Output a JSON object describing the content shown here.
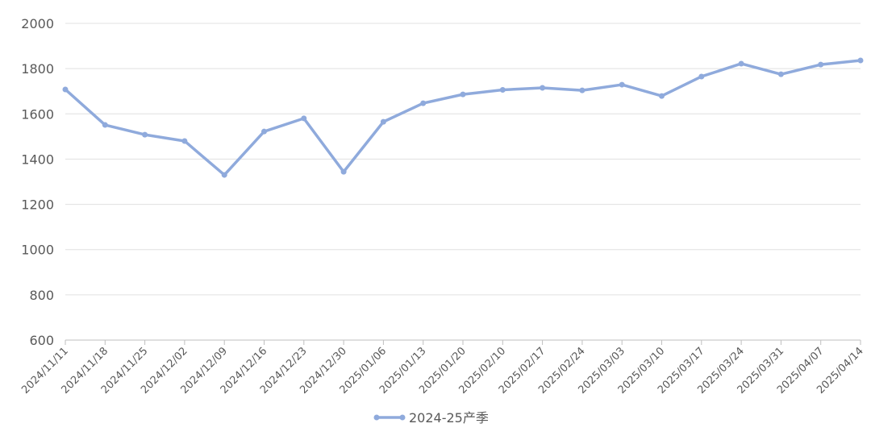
{
  "chart_data": {
    "type": "line",
    "categories": [
      "2024/11/11",
      "2024/11/18",
      "2024/11/25",
      "2024/12/02",
      "2024/12/09",
      "2024/12/16",
      "2024/12/23",
      "2024/12/30",
      "2025/01/06",
      "2025/01/13",
      "2025/01/20",
      "2025/02/10",
      "2025/02/17",
      "2025/02/24",
      "2025/03/03",
      "2025/03/10",
      "2025/03/17",
      "2025/03/24",
      "2025/03/31",
      "2025/04/07",
      "2025/04/14"
    ],
    "series": [
      {
        "name": "2024-25产季",
        "color": "#8faadc",
        "values": [
          1708,
          1551,
          1508,
          1480,
          1330,
          1522,
          1580,
          1344,
          1565,
          1647,
          1686,
          1706,
          1715,
          1704,
          1729,
          1679,
          1765,
          1822,
          1775,
          1818,
          1836
        ]
      }
    ],
    "ylim": [
      600,
      2000
    ],
    "yticks": [
      600,
      800,
      1000,
      1200,
      1400,
      1600,
      1800,
      2000
    ],
    "grid": true
  }
}
